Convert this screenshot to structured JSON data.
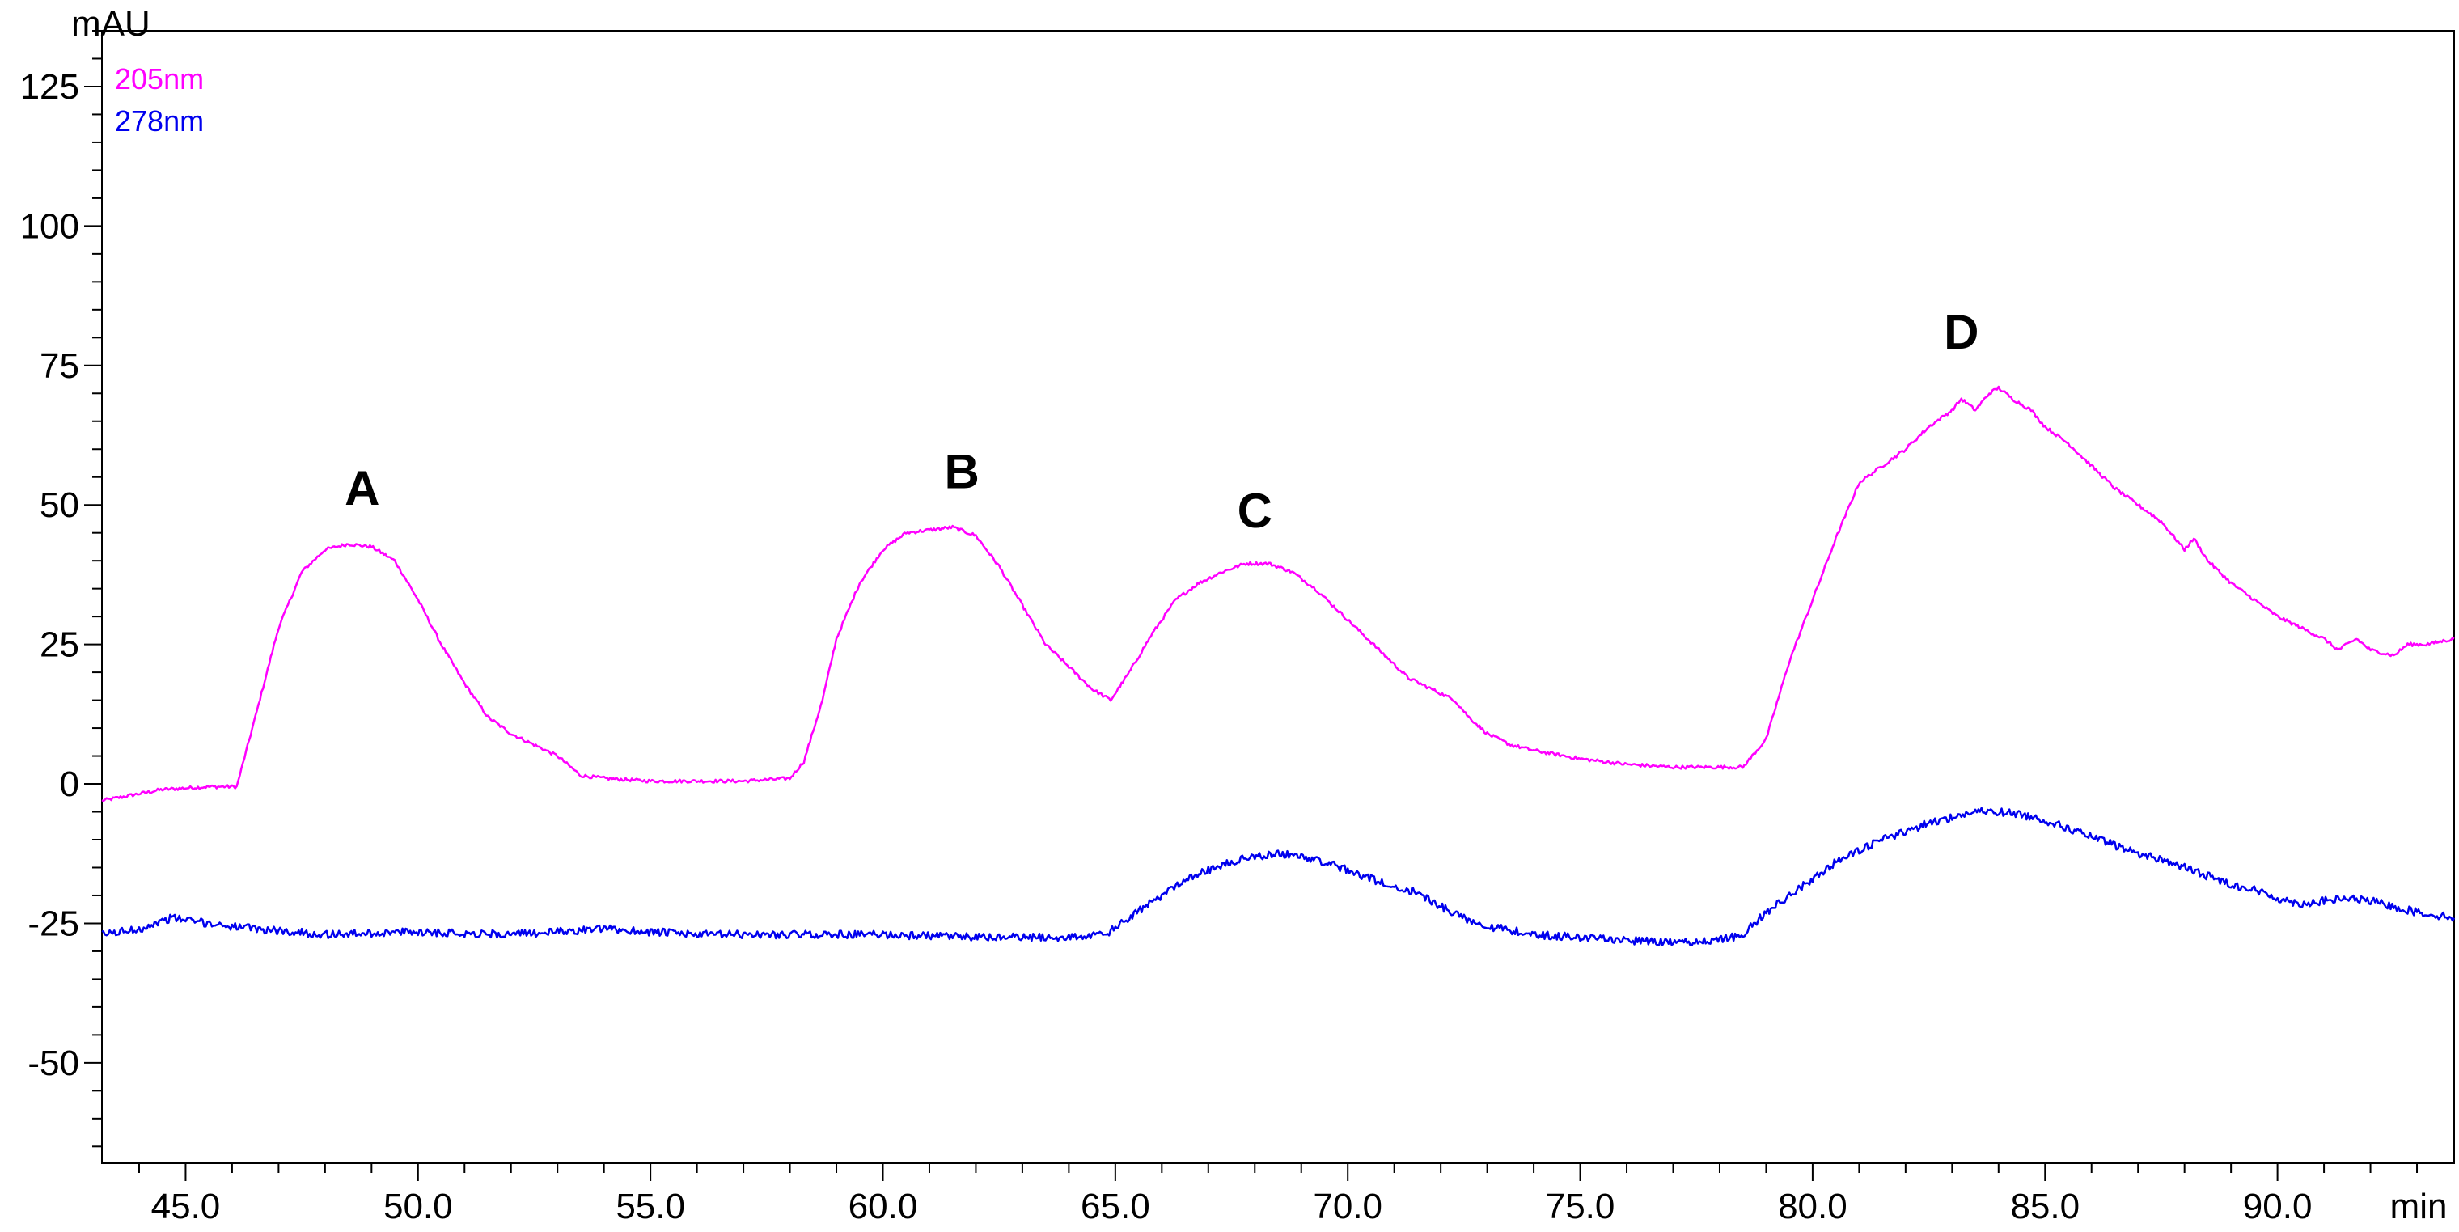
{
  "chart_data": {
    "type": "line",
    "y_unit_label": "mAU",
    "x_unit_label": "min",
    "xlim": [
      43.2,
      93.8
    ],
    "ylim": [
      -68,
      135
    ],
    "x_ticks": [
      "45.0",
      "50.0",
      "55.0",
      "60.0",
      "65.0",
      "70.0",
      "75.0",
      "80.0",
      "85.0",
      "90.0"
    ],
    "x_tick_values": [
      45,
      50,
      55,
      60,
      65,
      70,
      75,
      80,
      85,
      90
    ],
    "y_ticks": [
      "125",
      "100",
      "75",
      "50",
      "25",
      "0",
      "-25",
      "-50"
    ],
    "y_tick_values": [
      125,
      100,
      75,
      50,
      25,
      0,
      -25,
      -50
    ],
    "grid": false,
    "legend_position": "top-left",
    "series": [
      {
        "name": "205nm",
        "color": "#ff00ff",
        "x": [
          43.2,
          44.5,
          45.5,
          46.1,
          46.5,
          47.0,
          47.5,
          48.0,
          48.5,
          49.0,
          49.5,
          50.0,
          50.5,
          51.0,
          51.5,
          52.0,
          52.5,
          53.0,
          53.5,
          54.0,
          55.0,
          56.0,
          57.0,
          58.0,
          58.3,
          58.7,
          59.0,
          59.5,
          60.0,
          60.5,
          61.0,
          61.5,
          62.0,
          62.5,
          63.0,
          63.5,
          64.0,
          64.5,
          64.9,
          65.3,
          65.8,
          66.3,
          66.8,
          67.3,
          67.8,
          68.3,
          68.8,
          69.3,
          69.8,
          70.3,
          70.8,
          71.3,
          71.8,
          72.3,
          72.6,
          73.0,
          73.5,
          74.0,
          75.0,
          76.0,
          77.0,
          78.0,
          78.5,
          79.0,
          79.5,
          80.0,
          80.5,
          81.0,
          81.5,
          82.0,
          82.5,
          83.0,
          83.2,
          83.5,
          83.8,
          84.0,
          84.3,
          84.7,
          85.0,
          85.5,
          86.0,
          86.5,
          87.0,
          87.5,
          88.0,
          88.2,
          88.5,
          89.0,
          89.5,
          90.0,
          90.5,
          91.0,
          91.3,
          91.7,
          92.0,
          92.5,
          92.8,
          93.2,
          93.8
        ],
        "y": [
          -3,
          -1,
          -0.5,
          -0.5,
          12,
          28,
          38,
          42,
          43,
          42.5,
          40,
          33,
          25,
          18,
          12,
          9,
          7,
          5,
          1.5,
          1,
          0.5,
          0.5,
          0.5,
          1,
          4,
          15,
          26,
          36,
          42,
          45,
          45.5,
          46,
          44.5,
          39,
          32,
          25,
          21,
          17,
          15,
          20,
          27,
          33,
          36,
          38,
          39.5,
          39.5,
          38,
          35,
          31,
          27,
          23,
          19,
          17,
          15,
          12,
          9,
          7,
          6,
          4.5,
          3.5,
          3,
          3,
          3,
          8,
          22,
          33,
          44,
          54,
          57,
          60,
          64,
          67,
          69,
          67,
          70,
          71,
          69,
          67,
          64,
          61,
          57,
          53,
          50,
          47,
          42,
          44,
          40,
          36,
          33,
          30,
          28,
          26,
          24,
          26,
          24,
          23,
          25,
          25,
          26
        ]
      },
      {
        "name": "278nm",
        "color": "#0000ee",
        "x": [
          43.2,
          44.0,
          44.7,
          45.5,
          46.5,
          48.0,
          50.0,
          52.0,
          54.0,
          55.0,
          56.0,
          58.0,
          60.0,
          62.0,
          64.0,
          64.8,
          65.3,
          66.0,
          66.5,
          67.0,
          67.5,
          68.0,
          68.5,
          69.0,
          69.5,
          70.0,
          70.5,
          71.0,
          71.5,
          72.0,
          72.5,
          73.0,
          74.0,
          75.0,
          76.0,
          77.0,
          78.0,
          78.5,
          79.0,
          79.5,
          80.0,
          80.5,
          81.0,
          81.5,
          82.0,
          82.5,
          83.0,
          83.5,
          84.0,
          84.5,
          85.0,
          85.5,
          86.0,
          86.5,
          87.0,
          87.5,
          88.0,
          88.5,
          89.0,
          89.5,
          90.0,
          90.5,
          91.0,
          91.5,
          92.0,
          92.5,
          93.0,
          93.8
        ],
        "y": [
          -27,
          -26,
          -24,
          -25,
          -26,
          -27,
          -26.5,
          -27,
          -26,
          -26.5,
          -27,
          -27,
          -27,
          -27.5,
          -27.5,
          -27,
          -24,
          -20,
          -17,
          -15.5,
          -14,
          -13,
          -12.5,
          -13,
          -14,
          -15.5,
          -17,
          -18.5,
          -19.5,
          -22,
          -24,
          -25.5,
          -27,
          -27.5,
          -28,
          -28.5,
          -28,
          -27,
          -23,
          -20,
          -17,
          -14,
          -12,
          -10,
          -8.5,
          -7,
          -6,
          -5,
          -5,
          -5.5,
          -6.5,
          -8,
          -9.5,
          -11,
          -12.5,
          -13.5,
          -15,
          -16.5,
          -18,
          -19,
          -20.5,
          -21.5,
          -21,
          -20.5,
          -21,
          -22,
          -23,
          -24
        ]
      }
    ],
    "annotations": [
      {
        "text": "A",
        "x": 48.8,
        "y": 50
      },
      {
        "text": "B",
        "x": 61.7,
        "y": 53
      },
      {
        "text": "C",
        "x": 68.0,
        "y": 46
      },
      {
        "text": "D",
        "x": 83.2,
        "y": 78
      }
    ]
  }
}
